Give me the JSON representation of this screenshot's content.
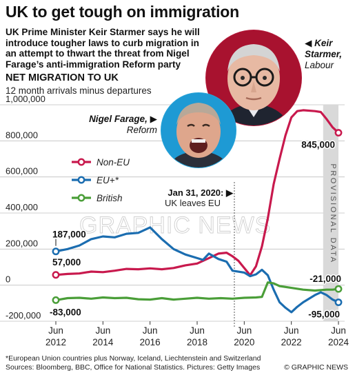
{
  "header": {
    "title": "UK to get tough on immigration",
    "subtitle": "UK Prime Minister Keir Starmer says he will introduce tougher laws to curb migration in an attempt to thwart the threat from Nigel Farage’s anti-immigration Reform party"
  },
  "section": {
    "title": "NET MIGRATION TO UK",
    "subtitle": "12 month arrivals minus departures"
  },
  "people": {
    "starmer": {
      "arrow": "◀",
      "name": "Keir",
      "name2": "Starmer,",
      "party": "Labour"
    },
    "farage": {
      "name": "Nigel Farage,",
      "arrow": "▶",
      "party": "Reform"
    }
  },
  "chart_data": {
    "type": "line",
    "x_axis": {
      "ticks": [
        {
          "month": "Jun",
          "year": "2012",
          "x": 2012.5
        },
        {
          "month": "Jun",
          "year": "2014",
          "x": 2014.5
        },
        {
          "month": "Jun",
          "year": "2016",
          "x": 2016.5
        },
        {
          "month": "Jun",
          "year": "2018",
          "x": 2018.5
        },
        {
          "month": "Jun",
          "year": "2020",
          "x": 2020.5
        },
        {
          "month": "Jun",
          "year": "2022",
          "x": 2022.5
        },
        {
          "month": "Jun",
          "year": "2024",
          "x": 2024.5
        }
      ],
      "range": [
        2012.5,
        2024.5
      ]
    },
    "y_axis": {
      "ticks": [
        {
          "label": "1,000,000",
          "value": 1000000
        },
        {
          "label": "800,000",
          "value": 800000
        },
        {
          "label": "600,000",
          "value": 600000
        },
        {
          "label": "400,000",
          "value": 400000
        },
        {
          "label": "200,000",
          "value": 200000
        },
        {
          "label": "0",
          "value": 0
        },
        {
          "label": "-200,000",
          "value": -200000
        }
      ],
      "range": [
        -200000,
        1000000
      ]
    },
    "series": [
      {
        "name": "Non-EU",
        "color": "#c8194d",
        "points": [
          [
            2012.5,
            57000
          ],
          [
            2013.0,
            62000
          ],
          [
            2013.5,
            65000
          ],
          [
            2014.0,
            75000
          ],
          [
            2014.5,
            72000
          ],
          [
            2015.0,
            80000
          ],
          [
            2015.5,
            90000
          ],
          [
            2016.0,
            88000
          ],
          [
            2016.5,
            93000
          ],
          [
            2017.0,
            88000
          ],
          [
            2017.5,
            95000
          ],
          [
            2018.0,
            110000
          ],
          [
            2018.5,
            120000
          ],
          [
            2019.0,
            150000
          ],
          [
            2019.4,
            175000
          ],
          [
            2019.75,
            180000
          ],
          [
            2020.0,
            160000
          ],
          [
            2020.25,
            135000
          ],
          [
            2020.5,
            95000
          ],
          [
            2020.75,
            55000
          ],
          [
            2021.0,
            105000
          ],
          [
            2021.25,
            215000
          ],
          [
            2021.5,
            370000
          ],
          [
            2021.75,
            560000
          ],
          [
            2022.0,
            700000
          ],
          [
            2022.25,
            830000
          ],
          [
            2022.5,
            930000
          ],
          [
            2022.75,
            965000
          ],
          [
            2023.0,
            970000
          ],
          [
            2023.5,
            965000
          ],
          [
            2023.75,
            960000
          ],
          [
            2024.0,
            920000
          ],
          [
            2024.25,
            875000
          ],
          [
            2024.5,
            845000
          ]
        ],
        "labels": [
          {
            "text": "57,000",
            "x": 2012.5,
            "y": 57000
          },
          {
            "text": "845,000",
            "x": 2024.5,
            "y": 845000
          }
        ]
      },
      {
        "name": "EU+*",
        "color": "#1b6db0",
        "points": [
          [
            2012.5,
            187000
          ],
          [
            2013.0,
            200000
          ],
          [
            2013.5,
            220000
          ],
          [
            2014.0,
            255000
          ],
          [
            2014.5,
            270000
          ],
          [
            2015.0,
            265000
          ],
          [
            2015.5,
            285000
          ],
          [
            2016.0,
            290000
          ],
          [
            2016.5,
            320000
          ],
          [
            2017.0,
            255000
          ],
          [
            2017.5,
            200000
          ],
          [
            2018.0,
            170000
          ],
          [
            2018.5,
            150000
          ],
          [
            2018.75,
            140000
          ],
          [
            2019.0,
            175000
          ],
          [
            2019.4,
            145000
          ],
          [
            2019.75,
            130000
          ],
          [
            2020.0,
            80000
          ],
          [
            2020.5,
            70000
          ],
          [
            2020.75,
            50000
          ],
          [
            2021.0,
            60000
          ],
          [
            2021.25,
            85000
          ],
          [
            2021.5,
            55000
          ],
          [
            2021.75,
            -25000
          ],
          [
            2022.0,
            -95000
          ],
          [
            2022.25,
            -125000
          ],
          [
            2022.5,
            -150000
          ],
          [
            2022.75,
            -120000
          ],
          [
            2023.0,
            -95000
          ],
          [
            2023.5,
            -55000
          ],
          [
            2023.75,
            -40000
          ],
          [
            2024.0,
            -55000
          ],
          [
            2024.25,
            -80000
          ],
          [
            2024.5,
            -95000
          ]
        ],
        "labels": [
          {
            "text": "187,000",
            "x": 2012.5,
            "y": 187000
          },
          {
            "text": "-95,000",
            "x": 2024.5,
            "y": -95000
          }
        ]
      },
      {
        "name": "British",
        "color": "#4a9e38",
        "points": [
          [
            2012.5,
            -83000
          ],
          [
            2013.0,
            -72000
          ],
          [
            2013.5,
            -70000
          ],
          [
            2014.0,
            -75000
          ],
          [
            2014.5,
            -68000
          ],
          [
            2015.0,
            -72000
          ],
          [
            2015.5,
            -70000
          ],
          [
            2016.0,
            -78000
          ],
          [
            2016.5,
            -80000
          ],
          [
            2017.0,
            -72000
          ],
          [
            2017.5,
            -80000
          ],
          [
            2018.0,
            -75000
          ],
          [
            2018.5,
            -70000
          ],
          [
            2019.0,
            -75000
          ],
          [
            2019.5,
            -72000
          ],
          [
            2020.0,
            -75000
          ],
          [
            2020.5,
            -70000
          ],
          [
            2021.0,
            -68000
          ],
          [
            2021.25,
            -65000
          ],
          [
            2021.5,
            15000
          ],
          [
            2021.75,
            10000
          ],
          [
            2022.0,
            -5000
          ],
          [
            2022.5,
            -15000
          ],
          [
            2023.0,
            -25000
          ],
          [
            2023.5,
            -30000
          ],
          [
            2024.0,
            -25000
          ],
          [
            2024.25,
            -25000
          ],
          [
            2024.5,
            -21000
          ]
        ],
        "labels": [
          {
            "text": "-83,000",
            "x": 2012.5,
            "y": -83000
          },
          {
            "text": "-21,000",
            "x": 2024.5,
            "y": -21000
          }
        ]
      }
    ],
    "annotations": {
      "brexit": {
        "date": "Jan 31, 2020:",
        "arrow": "▶",
        "text": "UK leaves EU",
        "x": 2020.08
      },
      "provisional": {
        "text": "PROVISIONAL DATA",
        "from": 2023.85,
        "to": 2024.5
      }
    },
    "legend": "left"
  },
  "watermark": "GRAPHIC NEWS",
  "footer": {
    "note": "*European Union countries plus Norway, Iceland, Liechtenstein and Switzerland",
    "sources": "Sources: Bloomberg, BBC, Office for National Statistics. Pictures: Getty Images",
    "credit": "© GRAPHIC NEWS"
  },
  "colors": {
    "nonEU": "#c8194d",
    "eu": "#1b6db0",
    "british": "#4a9e38",
    "provisional": "#d9d9d9",
    "grid": "#bfbfbf"
  }
}
